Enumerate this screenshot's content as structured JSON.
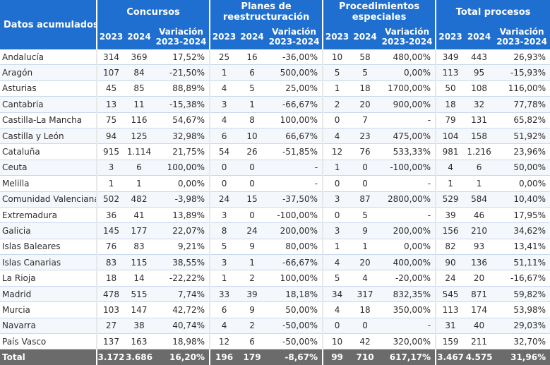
{
  "header": {
    "corner_label": "Datos acumulados",
    "groups": [
      "Concursos",
      "Planes de reestructuración",
      "Procedimientos especiales",
      "Total procesos"
    ],
    "sub": [
      "2023",
      "2024",
      "Variación 2023-2024"
    ]
  },
  "rows": [
    {
      "region": "Andalucía",
      "c": [
        "314",
        "369",
        "17,52%"
      ],
      "p": [
        "25",
        "16",
        "-36,00%"
      ],
      "e": [
        "10",
        "58",
        "480,00%"
      ],
      "t": [
        "349",
        "443",
        "26,93%"
      ]
    },
    {
      "region": "Aragón",
      "c": [
        "107",
        "84",
        "-21,50%"
      ],
      "p": [
        "1",
        "6",
        "500,00%"
      ],
      "e": [
        "5",
        "5",
        "0,00%"
      ],
      "t": [
        "113",
        "95",
        "-15,93%"
      ]
    },
    {
      "region": "Asturias",
      "c": [
        "45",
        "85",
        "88,89%"
      ],
      "p": [
        "4",
        "5",
        "25,00%"
      ],
      "e": [
        "1",
        "18",
        "1700,00%"
      ],
      "t": [
        "50",
        "108",
        "116,00%"
      ]
    },
    {
      "region": "Cantabria",
      "c": [
        "13",
        "11",
        "-15,38%"
      ],
      "p": [
        "3",
        "1",
        "-66,67%"
      ],
      "e": [
        "2",
        "20",
        "900,00%"
      ],
      "t": [
        "18",
        "32",
        "77,78%"
      ]
    },
    {
      "region": "Castilla-La Mancha",
      "c": [
        "75",
        "116",
        "54,67%"
      ],
      "p": [
        "4",
        "8",
        "100,00%"
      ],
      "e": [
        "0",
        "7",
        "-"
      ],
      "t": [
        "79",
        "131",
        "65,82%"
      ]
    },
    {
      "region": "Castilla y León",
      "c": [
        "94",
        "125",
        "32,98%"
      ],
      "p": [
        "6",
        "10",
        "66,67%"
      ],
      "e": [
        "4",
        "23",
        "475,00%"
      ],
      "t": [
        "104",
        "158",
        "51,92%"
      ]
    },
    {
      "region": "Cataluña",
      "c": [
        "915",
        "1.114",
        "21,75%"
      ],
      "p": [
        "54",
        "26",
        "-51,85%"
      ],
      "e": [
        "12",
        "76",
        "533,33%"
      ],
      "t": [
        "981",
        "1.216",
        "23,96%"
      ]
    },
    {
      "region": "Ceuta",
      "c": [
        "3",
        "6",
        "100,00%"
      ],
      "p": [
        "0",
        "0",
        "-"
      ],
      "e": [
        "1",
        "0",
        "-100,00%"
      ],
      "t": [
        "4",
        "6",
        "50,00%"
      ]
    },
    {
      "region": "Melilla",
      "c": [
        "1",
        "1",
        "0,00%"
      ],
      "p": [
        "0",
        "0",
        "-"
      ],
      "e": [
        "0",
        "0",
        "-"
      ],
      "t": [
        "1",
        "1",
        "0,00%"
      ]
    },
    {
      "region": "Comunidad Valenciana",
      "c": [
        "502",
        "482",
        "-3,98%"
      ],
      "p": [
        "24",
        "15",
        "-37,50%"
      ],
      "e": [
        "3",
        "87",
        "2800,00%"
      ],
      "t": [
        "529",
        "584",
        "10,40%"
      ]
    },
    {
      "region": "Extremadura",
      "c": [
        "36",
        "41",
        "13,89%"
      ],
      "p": [
        "3",
        "0",
        "-100,00%"
      ],
      "e": [
        "0",
        "5",
        "-"
      ],
      "t": [
        "39",
        "46",
        "17,95%"
      ]
    },
    {
      "region": "Galicia",
      "c": [
        "145",
        "177",
        "22,07%"
      ],
      "p": [
        "8",
        "24",
        "200,00%"
      ],
      "e": [
        "3",
        "9",
        "200,00%"
      ],
      "t": [
        "156",
        "210",
        "34,62%"
      ]
    },
    {
      "region": "Islas Baleares",
      "c": [
        "76",
        "83",
        "9,21%"
      ],
      "p": [
        "5",
        "9",
        "80,00%"
      ],
      "e": [
        "1",
        "1",
        "0,00%"
      ],
      "t": [
        "82",
        "93",
        "13,41%"
      ]
    },
    {
      "region": "Islas Canarias",
      "c": [
        "83",
        "115",
        "38,55%"
      ],
      "p": [
        "3",
        "1",
        "-66,67%"
      ],
      "e": [
        "4",
        "20",
        "400,00%"
      ],
      "t": [
        "90",
        "136",
        "51,11%"
      ]
    },
    {
      "region": "La Rioja",
      "c": [
        "18",
        "14",
        "-22,22%"
      ],
      "p": [
        "1",
        "2",
        "100,00%"
      ],
      "e": [
        "5",
        "4",
        "-20,00%"
      ],
      "t": [
        "24",
        "20",
        "-16,67%"
      ]
    },
    {
      "region": "Madrid",
      "c": [
        "478",
        "515",
        "7,74%"
      ],
      "p": [
        "33",
        "39",
        "18,18%"
      ],
      "e": [
        "34",
        "317",
        "832,35%"
      ],
      "t": [
        "545",
        "871",
        "59,82%"
      ]
    },
    {
      "region": "Murcia",
      "c": [
        "103",
        "147",
        "42,72%"
      ],
      "p": [
        "6",
        "9",
        "50,00%"
      ],
      "e": [
        "4",
        "18",
        "350,00%"
      ],
      "t": [
        "113",
        "174",
        "53,98%"
      ]
    },
    {
      "region": "Navarra",
      "c": [
        "27",
        "38",
        "40,74%"
      ],
      "p": [
        "4",
        "2",
        "-50,00%"
      ],
      "e": [
        "0",
        "0",
        "-"
      ],
      "t": [
        "31",
        "40",
        "29,03%"
      ]
    },
    {
      "region": "País Vasco",
      "c": [
        "137",
        "163",
        "18,98%"
      ],
      "p": [
        "12",
        "6",
        "-50,00%"
      ],
      "e": [
        "10",
        "42",
        "320,00%"
      ],
      "t": [
        "159",
        "211",
        "32,70%"
      ]
    }
  ],
  "total": {
    "region": "Total",
    "c": [
      "3.172",
      "3.686",
      "16,20%"
    ],
    "p": [
      "196",
      "179",
      "-8,67%"
    ],
    "e": [
      "99",
      "710",
      "617,17%"
    ],
    "t": [
      "3.467",
      "4.575",
      "31,96%"
    ]
  },
  "colors": {
    "header_blue": "#1f6fd0",
    "total_gray": "#6b6b6b",
    "header_text": "#ffffff"
  }
}
